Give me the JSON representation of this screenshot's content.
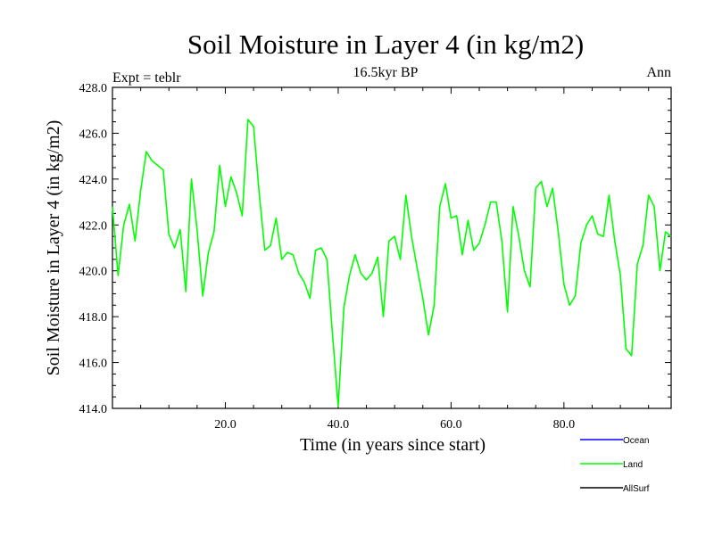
{
  "chart_data": {
    "type": "line",
    "title": "Soil Moisture in Layer 4 (in kg/m2)",
    "subtitle": "16.5kyr BP",
    "left_label": "Expt = teblr",
    "right_label": "Ann",
    "xlabel": "Time (in years since start)",
    "ylabel": "Soil Moisture in Layer 4 (in kg/m2)",
    "xlim": [
      0,
      99
    ],
    "ylim": [
      414,
      428
    ],
    "x_ticks": [
      20,
      40,
      60,
      80
    ],
    "x_tick_labels": [
      "20.0",
      "40.0",
      "60.0",
      "80.0"
    ],
    "y_ticks": [
      414,
      416,
      418,
      420,
      422,
      424,
      426,
      428
    ],
    "y_tick_labels": [
      "414.0",
      "416.0",
      "418.0",
      "420.0",
      "422.0",
      "424.0",
      "426.0",
      "428.0"
    ],
    "legend": [
      {
        "name": "Ocean",
        "color": "#0000ff"
      },
      {
        "name": "Land",
        "color": "#00ff00"
      },
      {
        "name": "AllSurf",
        "color": "#000000"
      }
    ],
    "series": [
      {
        "name": "Land",
        "color": "#00ff00",
        "x": [
          0,
          1,
          2,
          3,
          4,
          5,
          6,
          7,
          8,
          9,
          10,
          11,
          12,
          13,
          14,
          15,
          16,
          17,
          18,
          19,
          20,
          21,
          22,
          23,
          24,
          25,
          26,
          27,
          28,
          29,
          30,
          31,
          32,
          33,
          34,
          35,
          36,
          37,
          38,
          39,
          40,
          41,
          42,
          43,
          44,
          45,
          46,
          47,
          48,
          49,
          50,
          51,
          52,
          53,
          54,
          55,
          56,
          57,
          58,
          59,
          60,
          61,
          62,
          63,
          64,
          65,
          66,
          67,
          68,
          69,
          70,
          71,
          72,
          73,
          74,
          75,
          76,
          77,
          78,
          79,
          80,
          81,
          82,
          83,
          84,
          85,
          86,
          87,
          88,
          89,
          90,
          91,
          92,
          93,
          94,
          95,
          96,
          97,
          98,
          99
        ],
        "values": [
          422.8,
          419.8,
          422.0,
          422.9,
          421.3,
          423.5,
          425.2,
          424.8,
          424.6,
          424.4,
          421.6,
          421.0,
          421.8,
          419.1,
          424.0,
          421.8,
          418.9,
          420.8,
          421.7,
          424.6,
          422.8,
          424.1,
          423.4,
          422.4,
          426.6,
          426.3,
          423.4,
          420.9,
          421.1,
          422.3,
          420.5,
          420.8,
          420.7,
          419.9,
          419.5,
          418.8,
          420.9,
          421.0,
          420.5,
          417.2,
          414.1,
          418.4,
          419.8,
          420.7,
          419.9,
          419.6,
          419.9,
          420.6,
          418.0,
          421.3,
          421.5,
          420.5,
          423.3,
          421.5,
          420.1,
          418.8,
          417.2,
          418.5,
          422.8,
          423.8,
          422.3,
          422.4,
          420.7,
          422.2,
          420.9,
          421.2,
          422.0,
          423.0,
          423.0,
          421.3,
          418.2,
          422.8,
          421.5,
          420.0,
          419.3,
          423.6,
          423.9,
          422.8,
          423.6,
          421.7,
          419.4,
          418.5,
          418.9,
          421.2,
          422.0,
          422.4,
          421.6,
          421.5,
          423.3,
          421.3,
          419.8,
          416.6,
          416.3,
          420.3,
          421.1,
          423.3,
          422.8,
          420.0,
          421.7,
          421.5
        ]
      }
    ]
  }
}
